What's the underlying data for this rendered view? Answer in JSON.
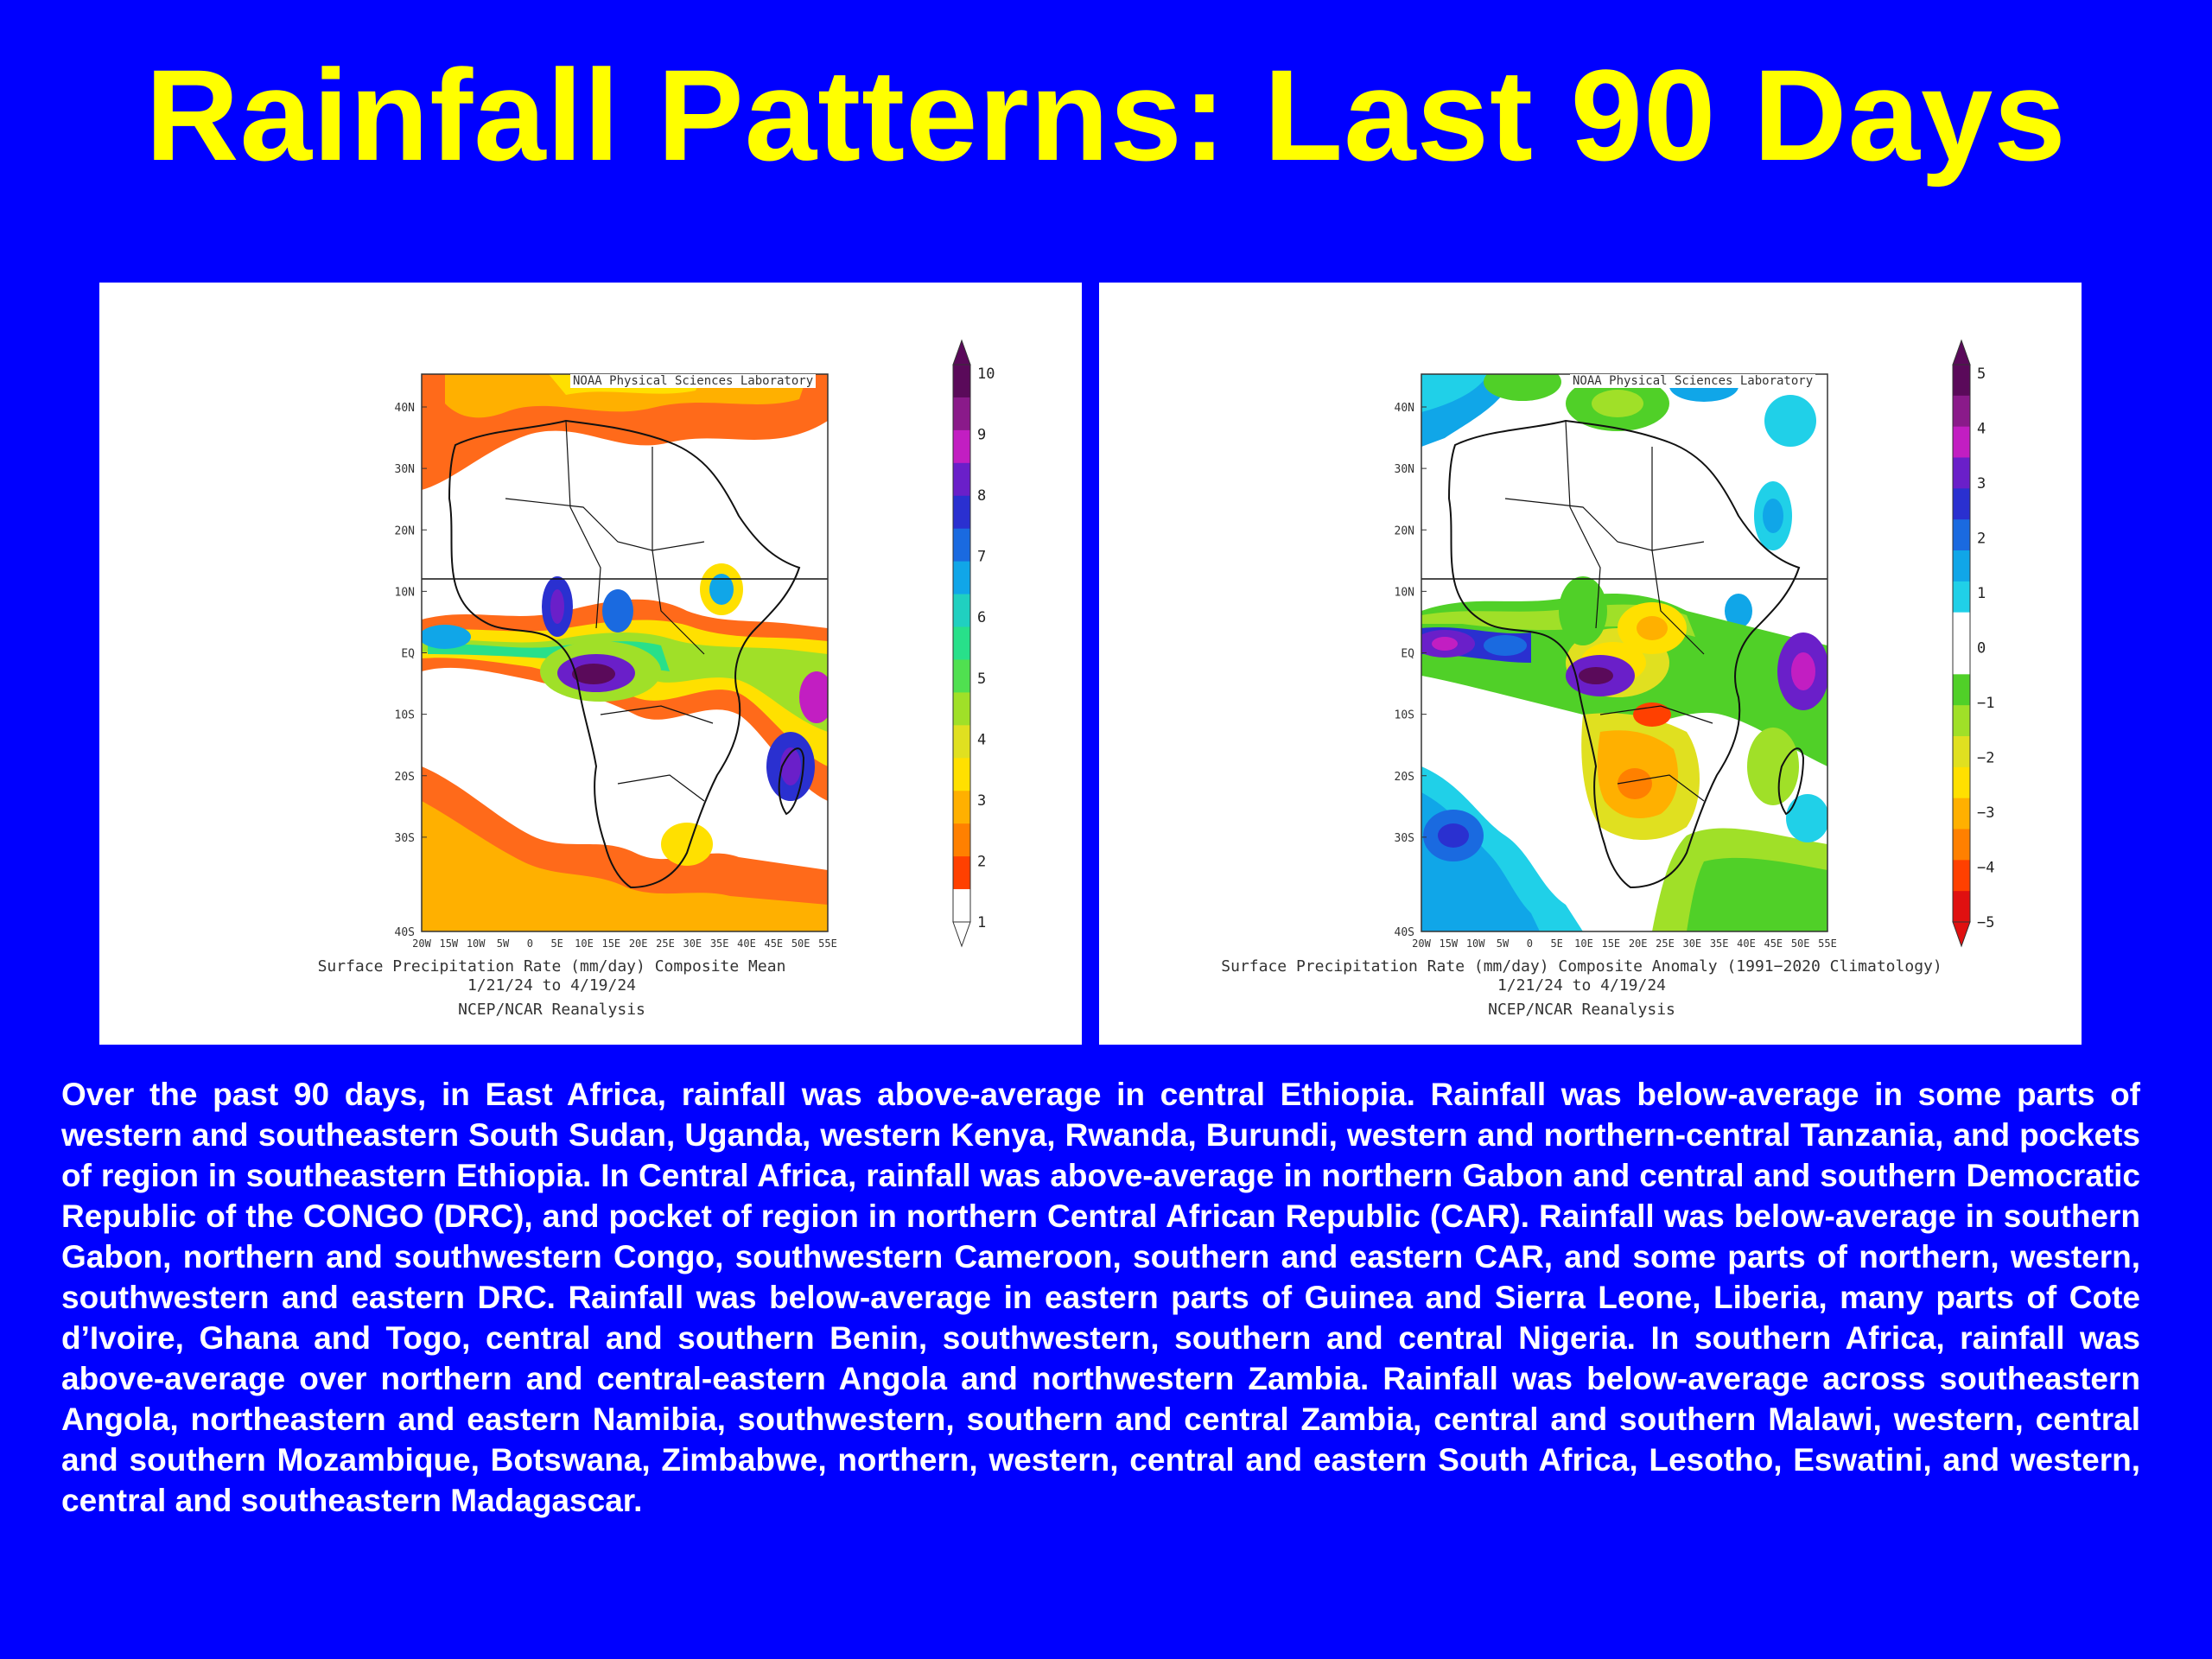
{
  "slide": {
    "title": "Rainfall Patterns: Last 90 Days",
    "summary": "Over the past 90 days, in East Africa, rainfall was above-average in central Ethiopia. Rainfall was below-average in some parts of western and southeastern South Sudan, Uganda, western Kenya, Rwanda, Burundi, western and northern-central Tanzania, and pockets of region in southeastern Ethiopia. In Central Africa, rainfall was above-average in northern Gabon and central and southern Democratic Republic of the CONGO (DRC), and pocket of region in northern Central African Republic (CAR). Rainfall was below-average in southern Gabon, northern and southwestern Congo, southwestern Cameroon, southern and eastern CAR, and some parts of northern, western, southwestern and eastern DRC. Rainfall was below-average in eastern parts of Guinea and Sierra Leone, Liberia, many parts of Cote d’Ivoire, Ghana and Togo, central and southern Benin, southwestern, southern and central Nigeria. In southern Africa, rainfall was above-average over northern and central-eastern Angola and northwestern Zambia. Rainfall was below-average across southeastern Angola, northeastern and eastern Namibia, southwestern, southern and central Zambia, central and southern Malawi, western, central and southern Mozambique, Botswana, Zimbabwe, northern, western, central and eastern South Africa, Lesotho, Eswatini, and western, central and southeastern Madagascar."
  },
  "maps": [
    {
      "credit": "NOAA Physical Sciences Laboratory",
      "caption_line1": "Surface Precipitation Rate (mm/day) Composite Mean",
      "caption_line2": "1/21/24  to 4/19/24",
      "caption_line3": "NCEP/NCAR Reanalysis",
      "lat_labels": [
        "40N",
        "30N",
        "20N",
        "10N",
        "EQ",
        "10S",
        "20S",
        "30S",
        "40S"
      ],
      "lon_labels": [
        "20W",
        "15W",
        "10W",
        "5W",
        "0",
        "5E",
        "10E",
        "15E",
        "20E",
        "25E",
        "30E",
        "35E",
        "40E",
        "45E",
        "50E",
        "55E"
      ],
      "colorbar_ticks": [
        "10",
        "9",
        "8",
        "7",
        "6",
        "5",
        "4",
        "3",
        "2",
        "1"
      ],
      "colorbar_colors": [
        "#5a0a5a",
        "#8a1a8a",
        "#c21ec2",
        "#6a1fc9",
        "#2a30d0",
        "#1a6ae0",
        "#10a6e8",
        "#20d0c0",
        "#28e08a",
        "#50e050",
        "#a0e028",
        "#e0e020",
        "#ffe000",
        "#ffb000",
        "#ff8000",
        "#ff4000",
        "#ffffff"
      ]
    },
    {
      "credit": "NOAA Physical Sciences Laboratory",
      "caption_line1": "Surface Precipitation Rate (mm/day) Composite Anomaly (1991−2020 Climatology)",
      "caption_line2": "1/21/24  to 4/19/24",
      "caption_line3": "NCEP/NCAR Reanalysis",
      "lat_labels": [
        "40N",
        "30N",
        "20N",
        "10N",
        "EQ",
        "10S",
        "20S",
        "30S",
        "40S"
      ],
      "lon_labels": [
        "20W",
        "15W",
        "10W",
        "5W",
        "0",
        "5E",
        "10E",
        "15E",
        "20E",
        "25E",
        "30E",
        "35E",
        "40E",
        "45E",
        "50E",
        "55E"
      ],
      "colorbar_ticks": [
        "5",
        "4",
        "3",
        "2",
        "1",
        "0",
        "−1",
        "−2",
        "−3",
        "−4",
        "−5"
      ],
      "colorbar_colors": [
        "#5a0a5a",
        "#8a1a8a",
        "#c21ec2",
        "#6a1fc9",
        "#2a30d0",
        "#1a6ae0",
        "#10a6e8",
        "#20d0e8",
        "#ffffff",
        "#ffffff",
        "#50d028",
        "#a0e028",
        "#e0e020",
        "#ffe000",
        "#ffb000",
        "#ff8000",
        "#ff4000",
        "#e01010"
      ]
    }
  ]
}
